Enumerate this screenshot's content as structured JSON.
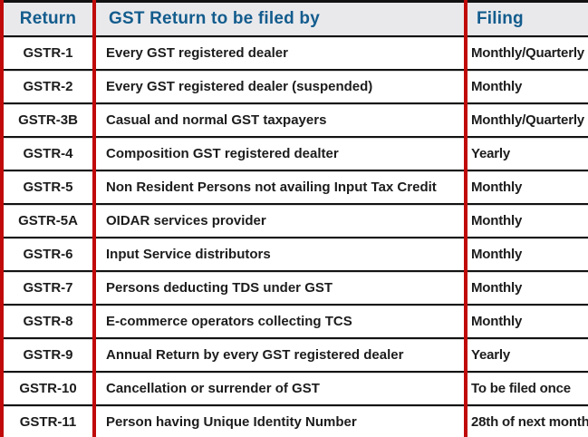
{
  "chart_data": {
    "type": "table",
    "title": "",
    "columns": [
      "Return",
      "GST Return to be filed by",
      "Filing"
    ],
    "rows": [
      [
        "GSTR-1",
        "Every GST registered dealer",
        "Monthly/Quarterly"
      ],
      [
        "GSTR-2",
        "Every GST registered dealer (suspended)",
        "Monthly"
      ],
      [
        "GSTR-3B",
        "Casual and normal GST taxpayers",
        "Monthly/Quarterly"
      ],
      [
        "GSTR-4",
        "Composition GST registered dealter",
        "Yearly"
      ],
      [
        "GSTR-5",
        "Non Resident Persons not availing Input Tax Credit",
        "Monthly"
      ],
      [
        "GSTR-5A",
        "OIDAR services provider",
        "Monthly"
      ],
      [
        "GSTR-6",
        "Input Service distributors",
        "Monthly"
      ],
      [
        "GSTR-7",
        "Persons deducting TDS under GST",
        "Monthly"
      ],
      [
        "GSTR-8",
        "E-commerce operators collecting TCS",
        "Monthly"
      ],
      [
        "GSTR-9",
        "Annual Return by every GST registered dealer",
        "Yearly"
      ],
      [
        "GSTR-10",
        "Cancellation or surrender of GST",
        "To be filed once"
      ],
      [
        "GSTR-11",
        "Person having Unique Identity Number",
        "28th of next month"
      ]
    ],
    "layout": {
      "grid": "on",
      "vertical_rule_color": "#c00a0a",
      "horizontal_rule_color": "#121212",
      "header_bg": "#e9e9ec",
      "header_text_color": "#135c8d",
      "body_text_color": "#1c1c1c"
    }
  }
}
